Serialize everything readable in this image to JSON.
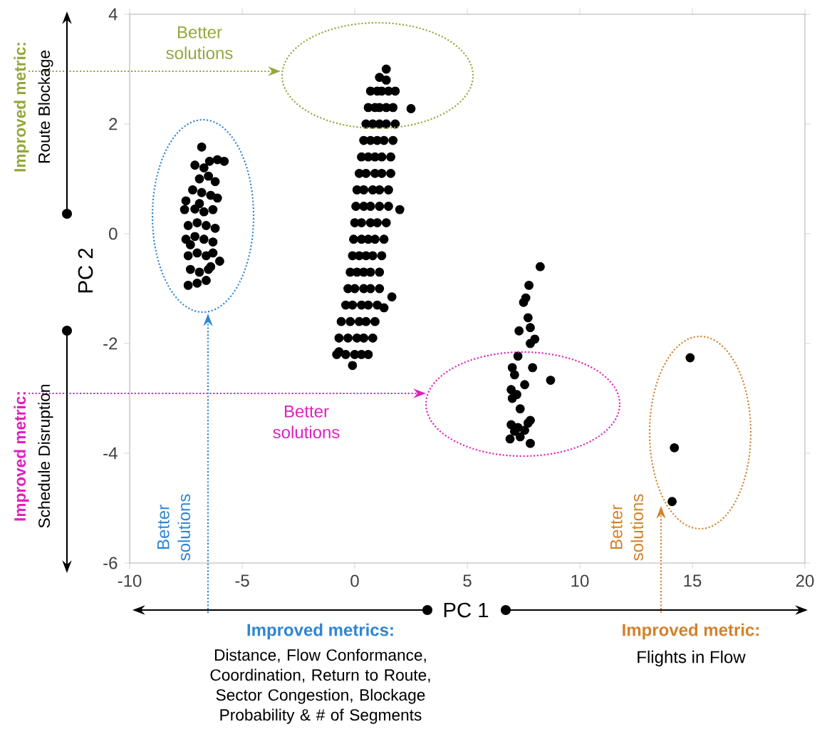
{
  "chart_data": {
    "type": "scatter",
    "xlabel": "PC 1",
    "ylabel": "PC 2",
    "marker": "circle",
    "xlim": [
      -10,
      20
    ],
    "ylim": [
      -6,
      4
    ],
    "xticks": [
      -10,
      -5,
      0,
      5,
      10,
      15,
      20
    ],
    "yticks": [
      -6,
      -4,
      -2,
      0,
      2,
      4
    ],
    "annotations": [
      "Better solutions",
      "Better solutions",
      "Better solutions",
      "Better solutions",
      "Improved metric:",
      "Route Blockage",
      "Improved metric:",
      "Schedule Disruption",
      "Improved metrics:",
      "Distance,  Flow Conformance, Coordination, Return to Route, Sector Congestion, Blockage Probability & # of Segments",
      "Improved metric:",
      "Flights in Flow"
    ],
    "x": [
      -6.8,
      -7.1,
      -6.45,
      -5.8,
      -6.1,
      -6.9,
      -6.5,
      -6.2,
      -7.2,
      -6.8,
      -6.4,
      -6.1,
      -7.56,
      -7.1,
      -6.7,
      -6.3,
      -7.4,
      -7.0,
      -6.6,
      -6.2,
      -7.5,
      -7.1,
      -6.7,
      -6.3,
      -7.4,
      -7.0,
      -6.6,
      -6.3,
      -6.0,
      -7.3,
      -6.9,
      -6.5,
      -7.4,
      -7.0,
      -6.6,
      -7.5,
      -6.9,
      -6.7,
      -7.3,
      -6.4,
      1.4,
      1.1,
      1.4,
      0.7,
      1.0,
      1.2,
      1.5,
      1.8,
      0.6,
      0.9,
      1.1,
      1.4,
      1.7,
      2.5,
      0.5,
      0.8,
      1.1,
      1.4,
      1.8,
      0.4,
      0.7,
      1.0,
      1.3,
      1.7,
      0.3,
      0.6,
      0.9,
      1.2,
      1.6,
      0.2,
      0.5,
      0.9,
      1.2,
      1.6,
      0.1,
      0.4,
      0.8,
      1.1,
      1.5,
      0.05,
      0.4,
      0.7,
      1.1,
      1.5,
      2.0,
      0.0,
      0.3,
      0.7,
      1.0,
      1.4,
      -0.05,
      0.3,
      0.6,
      0.9,
      1.3,
      -0.1,
      0.2,
      0.5,
      0.8,
      1.2,
      -0.2,
      0.1,
      0.4,
      0.7,
      1.1,
      -0.3,
      0.0,
      0.4,
      0.7,
      1.1,
      1.65,
      -0.4,
      -0.1,
      0.3,
      0.6,
      1.0,
      1.3,
      -0.6,
      -0.2,
      0.2,
      0.5,
      0.9,
      -0.7,
      -0.3,
      0.1,
      0.4,
      0.8,
      -0.8,
      -0.4,
      0.0,
      0.3,
      0.6,
      -0.1,
      -0.7,
      8.24,
      7.74,
      7.6,
      7.5,
      7.7,
      7.3,
      7.8,
      8.0,
      7.8,
      7.25,
      7.9,
      8.7,
      7.0,
      7.1,
      7.55,
      6.95,
      7.2,
      7.0,
      7.35,
      6.95,
      7.25,
      7.7,
      6.9,
      7.8,
      7.35,
      7.8,
      7.55,
      7.1,
      14.9,
      14.2,
      14.1
    ],
    "series": [
      {
        "color": "#000000",
        "values": [
          1.58,
          1.25,
          1.32,
          1.32,
          1.35,
          1.0,
          1.05,
          0.95,
          0.8,
          0.75,
          0.7,
          0.65,
          0.44,
          0.45,
          0.4,
          0.44,
          0.15,
          0.2,
          0.15,
          0.1,
          -0.1,
          -0.05,
          -0.1,
          -0.15,
          -0.4,
          -0.35,
          -0.4,
          -0.35,
          -0.5,
          -0.65,
          -0.7,
          -0.65,
          -0.94,
          -0.9,
          -0.85,
          0.6,
          0.55,
          1.2,
          -0.2,
          -0.6,
          3.0,
          2.85,
          2.8,
          2.6,
          2.6,
          2.6,
          2.6,
          2.6,
          2.3,
          2.3,
          2.3,
          2.3,
          2.3,
          2.28,
          2.0,
          2.0,
          2.0,
          2.0,
          2.0,
          1.7,
          1.7,
          1.7,
          1.7,
          1.7,
          1.4,
          1.4,
          1.4,
          1.4,
          1.4,
          1.1,
          1.1,
          1.1,
          1.1,
          1.1,
          0.8,
          0.8,
          0.8,
          0.8,
          0.8,
          0.5,
          0.5,
          0.5,
          0.5,
          0.5,
          0.44,
          0.2,
          0.2,
          0.2,
          0.2,
          0.2,
          -0.1,
          -0.1,
          -0.1,
          -0.1,
          -0.1,
          -0.4,
          -0.4,
          -0.4,
          -0.4,
          -0.4,
          -0.7,
          -0.7,
          -0.7,
          -0.7,
          -0.7,
          -1.0,
          -1.0,
          -1.0,
          -1.0,
          -1.0,
          -1.15,
          -1.3,
          -1.3,
          -1.3,
          -1.3,
          -1.3,
          -1.35,
          -1.6,
          -1.6,
          -1.6,
          -1.6,
          -1.6,
          -1.9,
          -1.9,
          -1.9,
          -1.9,
          -1.9,
          -2.2,
          -2.2,
          -2.2,
          -2.2,
          -2.2,
          -2.4,
          -2.15,
          -0.6,
          -0.94,
          -1.17,
          -1.25,
          -1.53,
          -1.77,
          -1.71,
          -1.92,
          -2.0,
          -2.23,
          -2.44,
          -2.67,
          -2.44,
          -2.57,
          -2.75,
          -2.84,
          -2.93,
          -3.0,
          -3.19,
          -3.48,
          -3.53,
          -3.45,
          -3.74,
          -3.82,
          -3.7,
          -3.4,
          -3.58,
          -3.6,
          -2.26,
          -3.9,
          -4.88
        ]
      }
    ]
  }
}
